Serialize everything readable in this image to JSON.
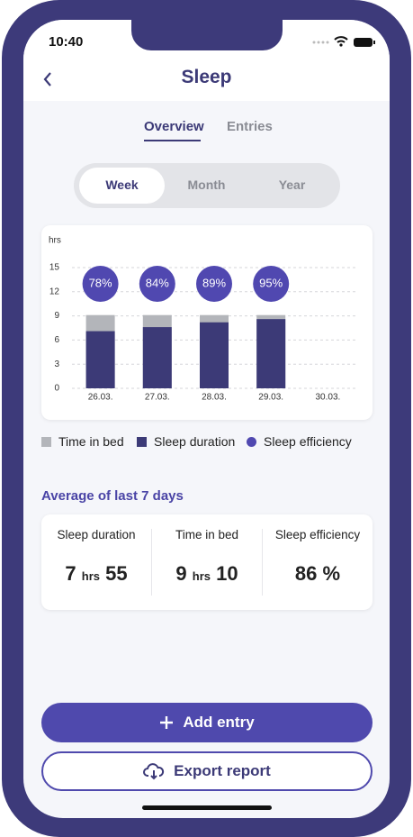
{
  "status": {
    "time": "10:40"
  },
  "header": {
    "title": "Sleep"
  },
  "tabs": [
    "Overview",
    "Entries"
  ],
  "periods": [
    "Week",
    "Month",
    "Year"
  ],
  "chart_data": {
    "type": "bar",
    "y_label": "hrs",
    "categories": [
      "26.03.",
      "27.03.",
      "28.03.",
      "29.03.",
      "30.03."
    ],
    "ylim": [
      0,
      15
    ],
    "yticks": [
      0,
      3,
      6,
      9,
      12,
      15
    ],
    "grid": true,
    "series": [
      {
        "name": "Time in bed",
        "color": "#b3b5ba",
        "values": [
          9.1,
          9.1,
          9.1,
          9.1,
          null
        ]
      },
      {
        "name": "Sleep duration",
        "color": "#3c3a77",
        "values": [
          7.1,
          7.6,
          8.2,
          8.6,
          null
        ]
      },
      {
        "name": "Sleep efficiency",
        "color": "#5048b0",
        "values": [
          78,
          84,
          89,
          95,
          null
        ],
        "value_labels": [
          "78%",
          "84%",
          "89%",
          "95%",
          null
        ]
      }
    ]
  },
  "average": {
    "title": "Average of last 7 days",
    "stats": [
      {
        "label": "Sleep duration",
        "hours": 7,
        "unit": "hrs",
        "minutes": 55
      },
      {
        "label": "Time in bed",
        "hours": 9,
        "unit": "hrs",
        "minutes": 10
      },
      {
        "label": "Sleep efficiency",
        "value": "86 %"
      }
    ]
  },
  "buttons": {
    "add": "Add entry",
    "export": "Export report"
  }
}
